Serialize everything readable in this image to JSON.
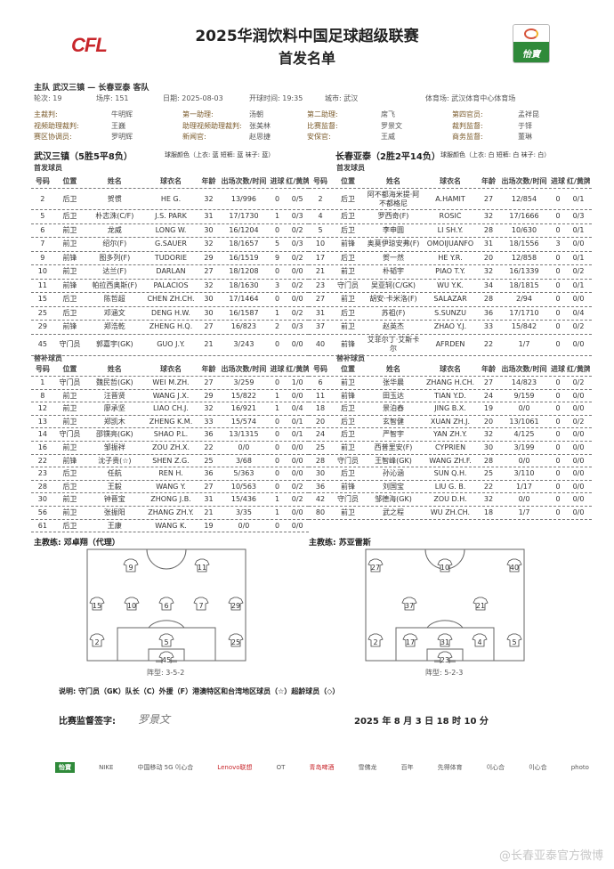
{
  "header": {
    "title": "2025华润饮料中国足球超级联赛",
    "subtitle": "首发名单",
    "logo_left": "CFL",
    "logo_right": "怡寶"
  },
  "match": {
    "line": "主队 武汉三镇 — 长春亚泰 客队",
    "round": "轮次: 19",
    "seq": "场序: 151",
    "date": "日期: 2025-08-03",
    "kickoff": "开球时间: 19:35",
    "city": "城市: 武汉",
    "stadium": "体育场: 武汉体育中心体育场"
  },
  "officials": [
    [
      "主裁判:",
      "牛明辉",
      "第一助理:",
      "汤朝",
      "第二助理:",
      "席飞",
      "第四官员:",
      "孟祥昆"
    ],
    [
      "视频助理裁判:",
      "王巍",
      "助理视频助理裁判:",
      "张美林",
      "比赛监督:",
      "罗景文",
      "裁判监督:",
      "于铎"
    ],
    [
      "赛区协调员:",
      "罗明辉",
      "新闻官:",
      "赵思捷",
      "安保官:",
      "王威",
      "商务监督:",
      "董琳"
    ]
  ],
  "home": {
    "name": "武汉三镇（5胜5平8负）",
    "kit": "球服颜色（上衣: 蓝 短裤: 蓝 袜子: 蓝）",
    "coach": "主教练:  邓卓翔（代理）",
    "formation": "阵型: 3-5-2"
  },
  "away": {
    "name": "长春亚泰（2胜2平14负）",
    "kit": "球服颜色（上衣: 白 短裤: 白 袜子: 白）",
    "coach": "主教练:  苏亚雷斯",
    "formation": "阵型: 5-2-3"
  },
  "labels": {
    "starters": "首发球员",
    "subs": "替补球员"
  },
  "columns": [
    "号码",
    "位置",
    "姓名",
    "球衣名",
    "年龄",
    "出场次数/时间",
    "进球",
    "红/黄牌"
  ],
  "home_starters": [
    [
      "2",
      "后卫",
      "贺惯",
      "HE G.",
      "32",
      "13/996",
      "0",
      "0/5"
    ],
    [
      "5",
      "后卫",
      "朴志洙(C/F)",
      "J.S. PARK",
      "31",
      "17/1730",
      "1",
      "0/3"
    ],
    [
      "6",
      "前卫",
      "龙威",
      "LONG W.",
      "30",
      "16/1204",
      "0",
      "0/2"
    ],
    [
      "7",
      "前卫",
      "绍尔(F)",
      "G.SAUER",
      "32",
      "18/1657",
      "5",
      "0/3"
    ],
    [
      "9",
      "前锋",
      "图多列(F)",
      "TUDORIE",
      "29",
      "16/1519",
      "9",
      "0/2"
    ],
    [
      "10",
      "前卫",
      "达兰(F)",
      "DARLAN",
      "27",
      "18/1208",
      "0",
      "0/0"
    ],
    [
      "11",
      "前锋",
      "帕拉西奥斯(F)",
      "PALACIOS",
      "32",
      "18/1630",
      "3",
      "0/2"
    ],
    [
      "15",
      "后卫",
      "陈哲超",
      "CHEN ZH.CH.",
      "30",
      "17/1464",
      "0",
      "0/0"
    ],
    [
      "25",
      "后卫",
      "邓涵文",
      "DENG H.W.",
      "30",
      "16/1587",
      "1",
      "0/2"
    ],
    [
      "29",
      "前锋",
      "郑浩乾",
      "ZHENG H.Q.",
      "27",
      "16/823",
      "2",
      "0/3"
    ],
    [
      "45",
      "守门员",
      "郭嘉宇(GK)",
      "GUO J.Y.",
      "21",
      "3/243",
      "0",
      "0/0"
    ]
  ],
  "away_starters": [
    [
      "2",
      "后卫",
      "阿不都海米提·阿不都格尼",
      "A.HAMIT",
      "27",
      "12/854",
      "0",
      "0/1"
    ],
    [
      "4",
      "后卫",
      "罗西奇(F)",
      "ROSIĆ",
      "32",
      "17/1666",
      "0",
      "0/3"
    ],
    [
      "5",
      "后卫",
      "李申圆",
      "LI SH.Y.",
      "28",
      "10/630",
      "0",
      "0/1"
    ],
    [
      "10",
      "前锋",
      "奥莫伊琼安弗(F)",
      "OMOIJUANFO",
      "31",
      "18/1556",
      "3",
      "0/0"
    ],
    [
      "17",
      "后卫",
      "贺一然",
      "HE Y.R.",
      "20",
      "12/858",
      "0",
      "0/1"
    ],
    [
      "21",
      "前卫",
      "朴韬宇",
      "PIAO T.Y.",
      "32",
      "16/1339",
      "0",
      "0/2"
    ],
    [
      "23",
      "守门员",
      "吴亚轲(C/GK)",
      "WU Y.K.",
      "34",
      "18/1815",
      "0",
      "0/1"
    ],
    [
      "27",
      "前卫",
      "胡安·卡米洛(F)",
      "SALAZAR",
      "28",
      "2/94",
      "0",
      "0/0"
    ],
    [
      "31",
      "后卫",
      "苏祖(F)",
      "S.SUNZU",
      "36",
      "17/1710",
      "0",
      "0/4"
    ],
    [
      "37",
      "前卫",
      "赵英杰",
      "ZHAO Y.J.",
      "33",
      "15/842",
      "0",
      "0/2"
    ],
    [
      "40",
      "前锋",
      "艾菲尔丁·艾斯卡尔",
      "AFRDEN",
      "22",
      "1/7",
      "0",
      "0/0"
    ]
  ],
  "home_subs": [
    [
      "1",
      "守门员",
      "魏民哲(GK)",
      "WEI M.ZH.",
      "27",
      "3/259",
      "0",
      "1/0"
    ],
    [
      "8",
      "前卫",
      "汪晋贤",
      "WANG J.X.",
      "29",
      "15/822",
      "1",
      "0/0"
    ],
    [
      "12",
      "前卫",
      "廖承坚",
      "LIAO CH.J.",
      "32",
      "16/921",
      "1",
      "0/4"
    ],
    [
      "13",
      "前卫",
      "郑凯木",
      "ZHENG K.M.",
      "33",
      "15/574",
      "0",
      "0/1"
    ],
    [
      "14",
      "守门员",
      "邵镤亮(GK)",
      "SHAO P.L.",
      "36",
      "13/1315",
      "0",
      "0/1"
    ],
    [
      "16",
      "前卫",
      "邹振祥",
      "ZOU ZH.X.",
      "22",
      "0/0",
      "0",
      "0/0"
    ],
    [
      "22",
      "前锋",
      "沈子贵(☆)",
      "SHEN Z.G.",
      "25",
      "3/68",
      "0",
      "0/0"
    ],
    [
      "23",
      "后卫",
      "任航",
      "REN H.",
      "36",
      "5/363",
      "0",
      "0/0"
    ],
    [
      "28",
      "后卫",
      "王毅",
      "WANG Y.",
      "27",
      "10/563",
      "0",
      "0/2"
    ],
    [
      "30",
      "前卫",
      "钟晋宝",
      "ZHONG J.B.",
      "31",
      "15/436",
      "1",
      "0/2"
    ],
    [
      "56",
      "前卫",
      "张振阳",
      "ZHANG ZH.Y.",
      "21",
      "3/35",
      "1",
      "0/0"
    ],
    [
      "61",
      "后卫",
      "王康",
      "WANG K.",
      "19",
      "0/0",
      "0",
      "0/0"
    ]
  ],
  "away_subs": [
    [
      "6",
      "前卫",
      "张华晨",
      "ZHANG H.CH.",
      "27",
      "14/823",
      "0",
      "0/2"
    ],
    [
      "11",
      "前锋",
      "田玉达",
      "TIAN Y.D.",
      "24",
      "9/159",
      "0",
      "0/0"
    ],
    [
      "18",
      "后卫",
      "景泊舂",
      "JING B.X.",
      "19",
      "0/0",
      "0",
      "0/0"
    ],
    [
      "20",
      "后卫",
      "玄智健",
      "XUAN ZH.J.",
      "20",
      "13/1061",
      "0",
      "0/2"
    ],
    [
      "24",
      "后卫",
      "严智宇",
      "YAN ZH.Y.",
      "32",
      "4/125",
      "0",
      "0/0"
    ],
    [
      "25",
      "前卫",
      "西普里安(F)",
      "CYPRIEN",
      "30",
      "3/199",
      "0",
      "0/0"
    ],
    [
      "28",
      "守门员",
      "王智峰(GK)",
      "WANG ZH.F.",
      "28",
      "0/0",
      "0",
      "0/0"
    ],
    [
      "30",
      "后卫",
      "孙沁涵",
      "SUN Q.H.",
      "25",
      "3/110",
      "0",
      "0/0"
    ],
    [
      "36",
      "前锋",
      "刘国宝",
      "LIU G. B.",
      "22",
      "1/17",
      "0",
      "0/0"
    ],
    [
      "42",
      "守门员",
      "邹德海(GK)",
      "ZOU D.H.",
      "32",
      "0/0",
      "0",
      "0/0"
    ],
    [
      "80",
      "前卫",
      "武之程",
      "WU ZH.CH.",
      "18",
      "1/7",
      "0",
      "0/0"
    ]
  ],
  "home_lineup": [
    [
      "9",
      "11"
    ],
    [
      "15",
      "10",
      "6",
      "7",
      "29"
    ],
    [
      "2",
      "5",
      "25"
    ],
    [
      "45"
    ]
  ],
  "away_lineup": [
    [
      "27",
      "10",
      "40"
    ],
    [
      "37",
      "21"
    ],
    [
      "2",
      "17",
      "31",
      "4",
      "5"
    ],
    [
      "23"
    ]
  ],
  "footer": {
    "legend": "说明: 守门员（GK）队长（C）外援（F）港澳特区和台湾地区球员（☆）超龄球员（◇）",
    "sign_label": "比赛监督签字:",
    "signature": "罗景文",
    "datetime": "2025 年 8 月 3 日  18 时 10 分"
  },
  "sponsors": [
    "怡寶",
    "NIKE",
    "中国移动 5G 이心合",
    "Lenovo联想",
    "OT",
    "青岛啤酒",
    "雪佛龙",
    "百年",
    "先得体育",
    "이心合",
    "이心合",
    "photo"
  ],
  "watermark": "@长春亚泰官方微博"
}
